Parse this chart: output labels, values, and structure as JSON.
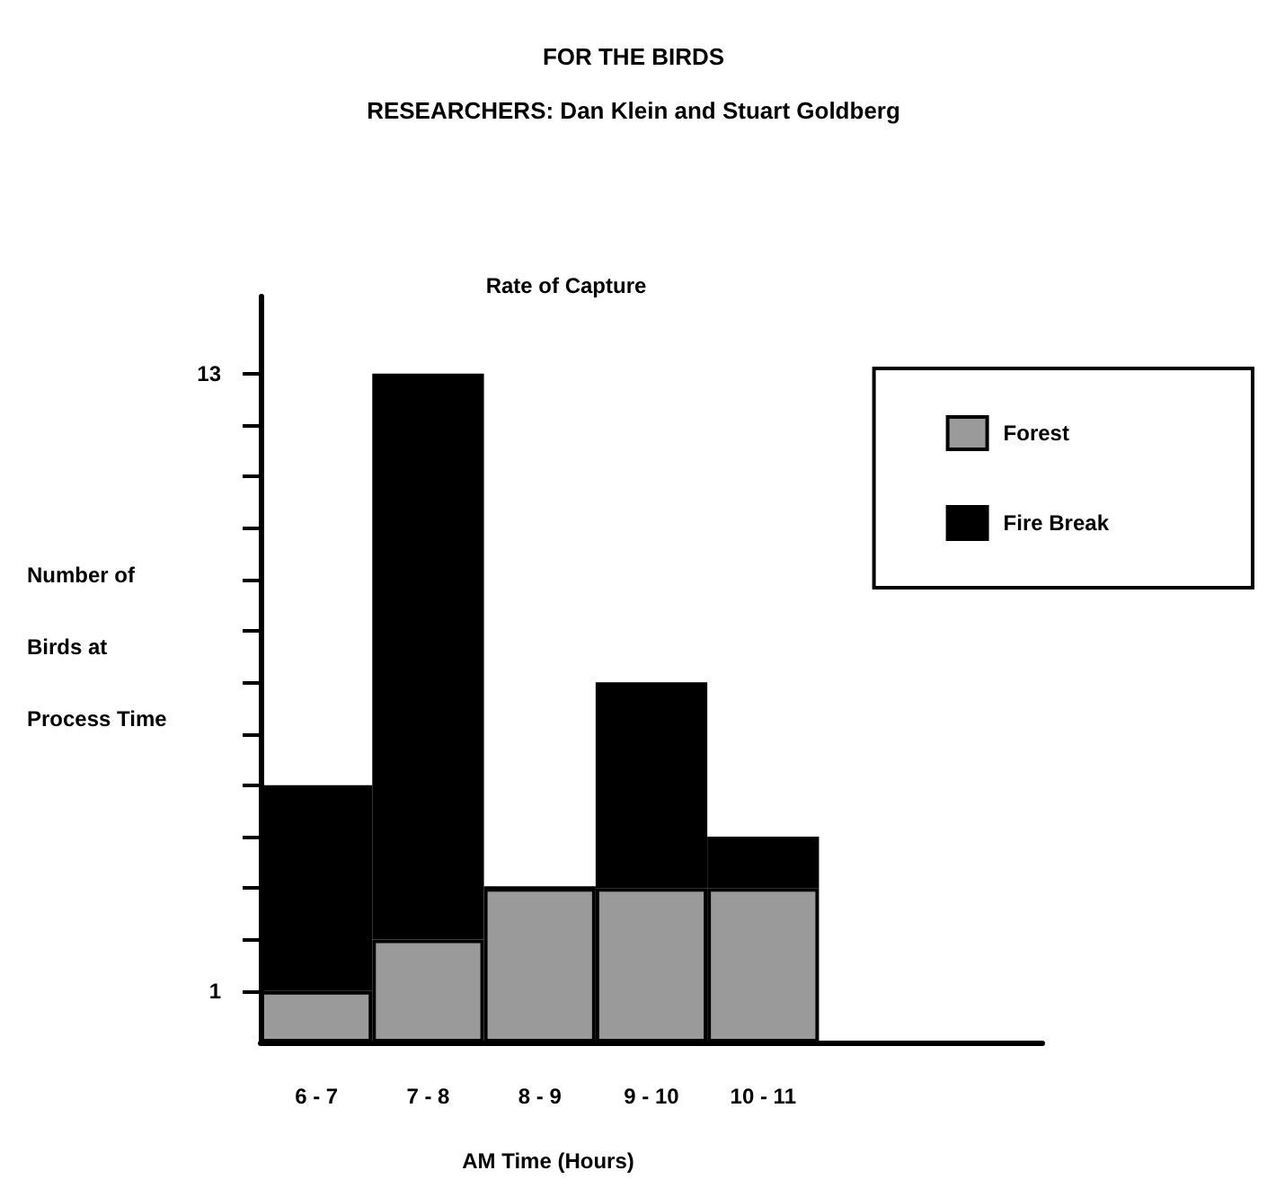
{
  "chart_data": {
    "type": "bar",
    "title": "FOR THE BIRDS",
    "subtitle": "RESEARCHERS: Dan Klein and Stuart Goldberg",
    "annotations": [
      "Rate of Capture"
    ],
    "xlabel": "AM Time (Hours)",
    "ylabel": "Number of\nBirds at\nProcess Time",
    "categories": [
      "6 - 7",
      "7 - 8",
      "8 - 9",
      "9 - 10",
      "10 - 11",
      null,
      null
    ],
    "stacked": true,
    "series": [
      {
        "name": "Forest",
        "color": "#9a9a9a",
        "values": [
          1,
          2,
          3,
          3,
          3,
          null,
          null
        ]
      },
      {
        "name": "Fire Break",
        "color": "#000000",
        "values": [
          4,
          11,
          0,
          4,
          1,
          null,
          null
        ]
      }
    ],
    "ylim": [
      0,
      14.5
    ],
    "yticks": [
      1,
      {
        "value": 2,
        "label": null
      },
      {
        "value": 3,
        "label": null
      },
      {
        "value": 4,
        "label": null
      },
      {
        "value": 5,
        "label": null
      },
      {
        "value": 6,
        "label": null
      },
      {
        "value": 7,
        "label": null
      },
      {
        "value": 8,
        "label": null
      },
      {
        "value": 9,
        "label": null
      },
      {
        "value": 10,
        "label": null
      },
      {
        "value": 11,
        "label": null
      },
      {
        "value": 12,
        "label": null
      },
      13
    ],
    "grid": false,
    "legend": "top right"
  }
}
